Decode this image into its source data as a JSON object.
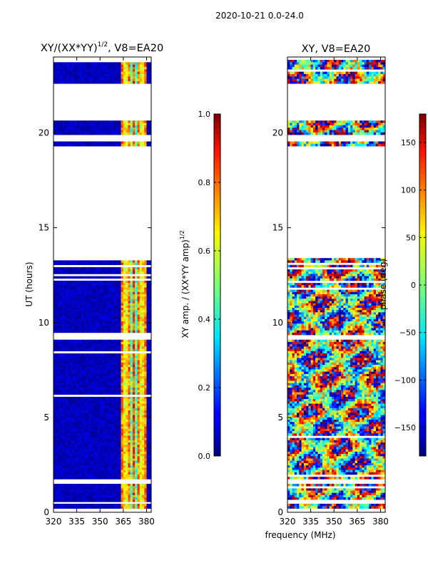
{
  "suptitle": "2020-10-21 0.0-24.0",
  "xlabel": "frequency (MHz)",
  "chart_data": [
    {
      "type": "heatmap",
      "title_main": "XY/(XX*YY)",
      "title_sup": "1/2",
      "title_rest": ", V8=EA20",
      "ylabel": "UT (hours)",
      "xlim": [
        320,
        383
      ],
      "ylim": [
        0,
        24
      ],
      "x_ticks": [
        320,
        335,
        350,
        365,
        380
      ],
      "y_ticks": [
        0,
        5,
        10,
        15,
        20
      ],
      "colorbar": {
        "label_main": "XY amp. / (XX*YY amp)",
        "label_sup": "1/2",
        "range": [
          0.0,
          1.0
        ],
        "ticks": [
          "0.0",
          "0.2",
          "0.4",
          "0.6",
          "0.8",
          "1.0"
        ],
        "tick_values": [
          0.0,
          0.2,
          0.4,
          0.6,
          0.8,
          1.0
        ],
        "colormap": "jet"
      },
      "data_hour_ranges": [
        [
          0.2,
          0.45
        ],
        [
          0.55,
          1.5
        ],
        [
          1.75,
          9.1
        ],
        [
          9.35,
          13.4
        ],
        [
          19.3,
          19.55
        ],
        [
          19.9,
          20.65
        ],
        [
          22.6,
          23.85
        ]
      ],
      "active_freq_band_mhz": [
        363,
        380
      ]
    },
    {
      "type": "heatmap",
      "title": "XY, V8=EA20",
      "ylabel": "",
      "xlim": [
        320,
        383
      ],
      "ylim": [
        0,
        24
      ],
      "x_ticks": [
        320,
        335,
        350,
        365,
        380
      ],
      "y_ticks": [
        0,
        5,
        10,
        15,
        20
      ],
      "colorbar": {
        "label": "phase (deg)",
        "range": [
          -180,
          180
        ],
        "ticks": [
          "150",
          "100",
          "50",
          "0",
          "−50",
          "−100",
          "−150"
        ],
        "tick_values": [
          150,
          100,
          50,
          0,
          -50,
          -100,
          -150
        ],
        "colormap": "jet"
      },
      "data_hour_ranges": [
        [
          0.2,
          0.45
        ],
        [
          0.55,
          1.5
        ],
        [
          1.75,
          9.1
        ],
        [
          9.35,
          13.4
        ],
        [
          19.3,
          19.55
        ],
        [
          19.9,
          20.65
        ],
        [
          22.6,
          23.85
        ]
      ]
    }
  ]
}
